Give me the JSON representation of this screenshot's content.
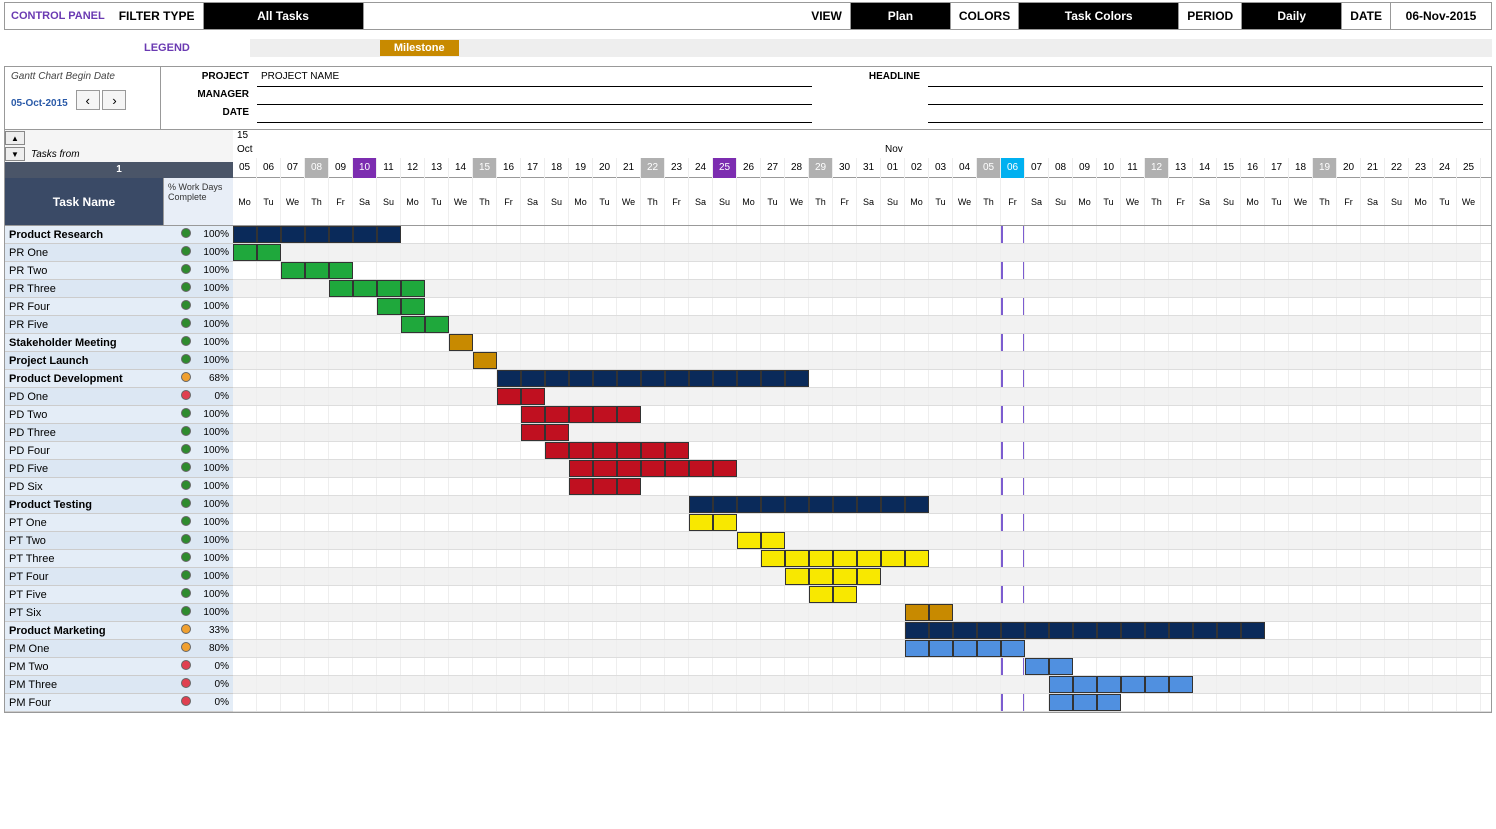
{
  "toolbar": {
    "control_panel": "CONTROL PANEL",
    "filter_type_label": "FILTER TYPE",
    "filter_type_value": "All Tasks",
    "view_label": "VIEW",
    "view_value": "Plan",
    "colors_label": "COLORS",
    "colors_value": "Task Colors",
    "period_label": "PERIOD",
    "period_value": "Daily",
    "date_label": "DATE",
    "date_value": "06-Nov-2015"
  },
  "legend": {
    "label": "LEGEND",
    "milestone": "Milestone",
    "milestone_color": "#c88a00"
  },
  "header": {
    "begin_date_label": "Gantt Chart Begin Date",
    "begin_date": "05-Oct-2015",
    "project_label": "PROJECT",
    "project_value": "PROJECT NAME",
    "manager_label": "MANAGER",
    "manager_value": "",
    "date_label": "DATE",
    "date_value": "",
    "headline_label": "HEADLINE",
    "headline_value": ""
  },
  "left_panel": {
    "tasks_from": "Tasks from",
    "index": "1",
    "task_name_header": "Task Name",
    "pct_header": "% Work Days Complete"
  },
  "timeline": {
    "year": "15",
    "months": [
      {
        "name": "Oct",
        "span": 27
      },
      {
        "name": "Nov",
        "span": 25
      }
    ],
    "today_index": 32,
    "dates": [
      {
        "d": "05"
      },
      {
        "d": "06"
      },
      {
        "d": "07"
      },
      {
        "d": "08",
        "cls": "grey"
      },
      {
        "d": "09"
      },
      {
        "d": "10",
        "cls": "purple"
      },
      {
        "d": "11"
      },
      {
        "d": "12"
      },
      {
        "d": "13"
      },
      {
        "d": "14"
      },
      {
        "d": "15",
        "cls": "grey"
      },
      {
        "d": "16"
      },
      {
        "d": "17"
      },
      {
        "d": "18"
      },
      {
        "d": "19"
      },
      {
        "d": "20"
      },
      {
        "d": "21"
      },
      {
        "d": "22",
        "cls": "grey"
      },
      {
        "d": "23"
      },
      {
        "d": "24"
      },
      {
        "d": "25",
        "cls": "purple"
      },
      {
        "d": "26"
      },
      {
        "d": "27"
      },
      {
        "d": "28"
      },
      {
        "d": "29",
        "cls": "grey"
      },
      {
        "d": "30"
      },
      {
        "d": "31"
      },
      {
        "d": "01"
      },
      {
        "d": "02"
      },
      {
        "d": "03"
      },
      {
        "d": "04"
      },
      {
        "d": "05",
        "cls": "grey"
      },
      {
        "d": "06",
        "cls": "cyan"
      },
      {
        "d": "07"
      },
      {
        "d": "08"
      },
      {
        "d": "09"
      },
      {
        "d": "10"
      },
      {
        "d": "11"
      },
      {
        "d": "12",
        "cls": "grey"
      },
      {
        "d": "13"
      },
      {
        "d": "14"
      },
      {
        "d": "15"
      },
      {
        "d": "16"
      },
      {
        "d": "17"
      },
      {
        "d": "18"
      },
      {
        "d": "19",
        "cls": "grey"
      },
      {
        "d": "20"
      },
      {
        "d": "21"
      },
      {
        "d": "22"
      },
      {
        "d": "23"
      },
      {
        "d": "24"
      },
      {
        "d": "25"
      }
    ],
    "dow": [
      "Mo",
      "Tu",
      "We",
      "Th",
      "Fr",
      "Sa",
      "Su",
      "Mo",
      "Tu",
      "We",
      "Th",
      "Fr",
      "Sa",
      "Su",
      "Mo",
      "Tu",
      "We",
      "Th",
      "Fr",
      "Sa",
      "Su",
      "Mo",
      "Tu",
      "We",
      "Th",
      "Fr",
      "Sa",
      "Su",
      "Mo",
      "Tu",
      "We",
      "Th",
      "Fr",
      "Sa",
      "Su",
      "Mo",
      "Tu",
      "We",
      "Th",
      "Fr",
      "Sa",
      "Su",
      "Mo",
      "Tu",
      "We",
      "Th",
      "Fr",
      "Sa",
      "Su",
      "Mo",
      "Tu",
      "We"
    ]
  },
  "colors": {
    "green": "#2e8b2e",
    "orange_dot": "#f0a030",
    "red_dot": "#e04050",
    "navy": "#0a2a5a",
    "green_bar": "#1fa83c",
    "gold": "#c88a00",
    "red_bar": "#c01020",
    "yellow": "#f8e800",
    "blue": "#2060c8",
    "lightblue": "#5090e0"
  },
  "tasks": [
    {
      "name": "Product Research",
      "bold": true,
      "dot": "green",
      "pct": "100%",
      "bars": [
        {
          "start": 0,
          "end": 7,
          "color": "navy"
        }
      ]
    },
    {
      "name": "PR One",
      "dot": "green",
      "pct": "100%",
      "bars": [
        {
          "start": 0,
          "end": 2,
          "color": "green_bar"
        }
      ]
    },
    {
      "name": "PR Two",
      "dot": "green",
      "pct": "100%",
      "bars": [
        {
          "start": 2,
          "end": 5,
          "color": "green_bar"
        }
      ]
    },
    {
      "name": "PR Three",
      "dot": "green",
      "pct": "100%",
      "bars": [
        {
          "start": 4,
          "end": 8,
          "color": "green_bar"
        }
      ]
    },
    {
      "name": "PR Four",
      "dot": "green",
      "pct": "100%",
      "bars": [
        {
          "start": 6,
          "end": 8,
          "color": "green_bar"
        }
      ]
    },
    {
      "name": "PR Five",
      "dot": "green",
      "pct": "100%",
      "bars": [
        {
          "start": 7,
          "end": 9,
          "color": "green_bar"
        }
      ]
    },
    {
      "name": "Stakeholder Meeting",
      "bold": true,
      "dot": "green",
      "pct": "100%",
      "bars": [
        {
          "start": 9,
          "end": 10,
          "color": "gold"
        }
      ]
    },
    {
      "name": "Project Launch",
      "bold": true,
      "dot": "green",
      "pct": "100%",
      "bars": [
        {
          "start": 10,
          "end": 11,
          "color": "gold"
        }
      ]
    },
    {
      "name": "Product Development",
      "bold": true,
      "dot": "orange_dot",
      "pct": "68%",
      "bars": [
        {
          "start": 11,
          "end": 24,
          "color": "navy"
        }
      ]
    },
    {
      "name": "PD One",
      "dot": "red_dot",
      "pct": "0%",
      "bars": [
        {
          "start": 11,
          "end": 13,
          "color": "red_bar"
        }
      ]
    },
    {
      "name": "PD Two",
      "dot": "green",
      "pct": "100%",
      "bars": [
        {
          "start": 12,
          "end": 17,
          "color": "red_bar"
        }
      ]
    },
    {
      "name": "PD Three",
      "dot": "green",
      "pct": "100%",
      "bars": [
        {
          "start": 12,
          "end": 14,
          "color": "red_bar"
        }
      ]
    },
    {
      "name": "PD Four",
      "dot": "green",
      "pct": "100%",
      "bars": [
        {
          "start": 13,
          "end": 19,
          "color": "red_bar"
        }
      ]
    },
    {
      "name": "PD Five",
      "dot": "green",
      "pct": "100%",
      "bars": [
        {
          "start": 14,
          "end": 21,
          "color": "red_bar"
        }
      ]
    },
    {
      "name": "PD Six",
      "dot": "green",
      "pct": "100%",
      "bars": [
        {
          "start": 14,
          "end": 17,
          "color": "red_bar"
        }
      ]
    },
    {
      "name": "Product Testing",
      "bold": true,
      "dot": "green",
      "pct": "100%",
      "bars": [
        {
          "start": 19,
          "end": 29,
          "color": "navy"
        }
      ]
    },
    {
      "name": "PT One",
      "dot": "green",
      "pct": "100%",
      "bars": [
        {
          "start": 19,
          "end": 21,
          "color": "yellow"
        }
      ]
    },
    {
      "name": "PT Two",
      "dot": "green",
      "pct": "100%",
      "bars": [
        {
          "start": 21,
          "end": 23,
          "color": "yellow"
        }
      ]
    },
    {
      "name": "PT Three",
      "dot": "green",
      "pct": "100%",
      "bars": [
        {
          "start": 22,
          "end": 29,
          "color": "yellow"
        }
      ]
    },
    {
      "name": "PT Four",
      "dot": "green",
      "pct": "100%",
      "bars": [
        {
          "start": 23,
          "end": 27,
          "color": "yellow"
        }
      ]
    },
    {
      "name": "PT Five",
      "dot": "green",
      "pct": "100%",
      "bars": [
        {
          "start": 24,
          "end": 26,
          "color": "yellow"
        }
      ]
    },
    {
      "name": "PT Six",
      "dot": "green",
      "pct": "100%",
      "bars": [
        {
          "start": 28,
          "end": 30,
          "color": "gold"
        }
      ]
    },
    {
      "name": "Product Marketing",
      "bold": true,
      "dot": "orange_dot",
      "pct": "33%",
      "bars": [
        {
          "start": 28,
          "end": 43,
          "color": "navy"
        }
      ]
    },
    {
      "name": "PM One",
      "dot": "orange_dot",
      "pct": "80%",
      "bars": [
        {
          "start": 28,
          "end": 33,
          "color": "lightblue"
        }
      ]
    },
    {
      "name": "PM Two",
      "dot": "red_dot",
      "pct": "0%",
      "bars": [
        {
          "start": 33,
          "end": 35,
          "color": "lightblue"
        }
      ]
    },
    {
      "name": "PM Three",
      "dot": "red_dot",
      "pct": "0%",
      "bars": [
        {
          "start": 34,
          "end": 40,
          "color": "lightblue"
        }
      ]
    },
    {
      "name": "PM Four",
      "dot": "red_dot",
      "pct": "0%",
      "bars": [
        {
          "start": 34,
          "end": 37,
          "color": "lightblue"
        }
      ]
    }
  ]
}
